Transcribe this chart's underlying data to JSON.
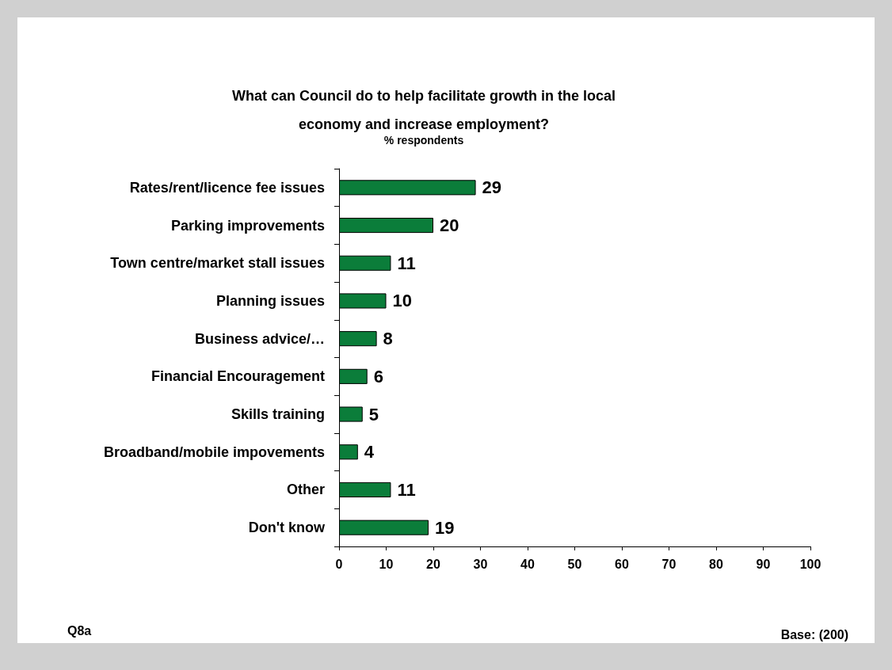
{
  "chart_data": {
    "type": "bar",
    "orientation": "horizontal",
    "title": "What can Council do to help facilitate growth in the local\neconomy and increase employment?",
    "subtitle": "% respondents",
    "categories": [
      "Rates/rent/licence fee issues",
      "Parking improvements",
      "Town centre/market stall issues",
      "Planning issues",
      "Business advice/…",
      "Financial Encouragement",
      "Skills training",
      "Broadband/mobile impovements",
      "Other",
      "Don't know"
    ],
    "values": [
      29,
      20,
      11,
      10,
      8,
      6,
      5,
      4,
      11,
      19
    ],
    "color": "#0b7d3a",
    "xlim": [
      0,
      100
    ],
    "xticks": [
      0,
      10,
      20,
      30,
      40,
      50,
      60,
      70,
      80,
      90,
      100
    ],
    "grid": false,
    "data_labels": true,
    "annotations": [
      "Q8a",
      "Base: (200)"
    ]
  }
}
